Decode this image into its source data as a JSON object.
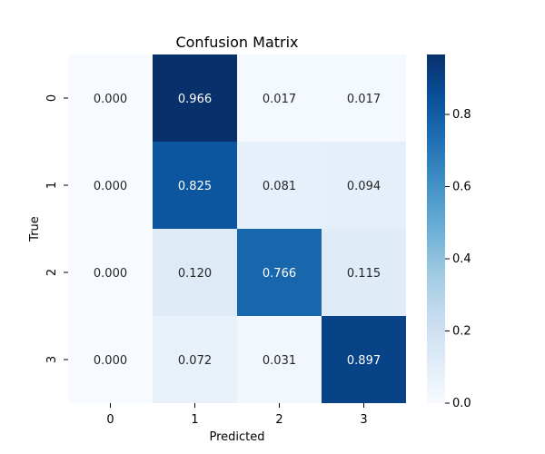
{
  "chart_data": {
    "type": "heatmap",
    "title": "Confusion Matrix",
    "xlabel": "Predicted",
    "ylabel": "True",
    "x_categories": [
      "0",
      "1",
      "2",
      "3"
    ],
    "y_categories": [
      "0",
      "1",
      "2",
      "3"
    ],
    "values": [
      [
        0.0,
        0.966,
        0.017,
        0.017
      ],
      [
        0.0,
        0.825,
        0.081,
        0.094
      ],
      [
        0.0,
        0.12,
        0.766,
        0.115
      ],
      [
        0.0,
        0.072,
        0.031,
        0.897
      ]
    ],
    "value_format": "0.000",
    "colormap": "Blues",
    "colorbar": {
      "range": [
        0,
        0.966
      ],
      "ticks": [
        "0.0",
        "0.2",
        "0.4",
        "0.6",
        "0.8"
      ]
    },
    "grid": false,
    "legend": "colorbar-right"
  }
}
